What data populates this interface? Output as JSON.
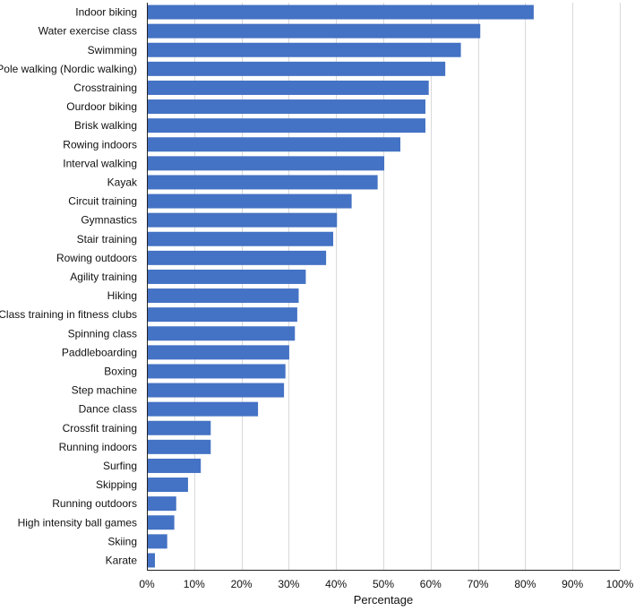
{
  "chart_data": {
    "type": "bar",
    "orientation": "horizontal",
    "categories": [
      "Indoor biking",
      "Water exercise class",
      "Swimming",
      "Pole walking (Nordic walking)",
      "Crosstraining",
      "Ourdoor biking",
      "Brisk walking",
      "Rowing indoors",
      "Interval walking",
      "Kayak",
      "Circuit training",
      "Gymnastics",
      "Stair training",
      "Rowing outdoors",
      "Agility training",
      "Hiking",
      "Class training in fitness clubs",
      "Spinning class",
      "Paddleboarding",
      "Boxing",
      "Step machine",
      "Dance class",
      "Crossfit training",
      "Running indoors",
      "Surfing",
      "Skipping",
      "Running outdoors",
      "High intensity ball games",
      "Skiing",
      "Karate"
    ],
    "values": [
      81.8,
      70.5,
      66.4,
      63.1,
      59.6,
      58.9,
      58.9,
      53.6,
      50.2,
      48.8,
      43.3,
      40.2,
      39.4,
      37.9,
      33.6,
      32.1,
      31.8,
      31.3,
      30.1,
      29.3,
      29.0,
      23.5,
      13.5,
      13.5,
      11.4,
      8.7,
      6.2,
      5.8,
      4.3,
      1.7
    ],
    "xlabel": "Percentage",
    "ylabel": "",
    "xlim": [
      0,
      100
    ],
    "x_ticks": [
      "0%",
      "10%",
      "20%",
      "30%",
      "40%",
      "50%",
      "60%",
      "70%",
      "80%",
      "90%",
      "100%"
    ],
    "grid": true,
    "bar_color": "#4472c4"
  }
}
